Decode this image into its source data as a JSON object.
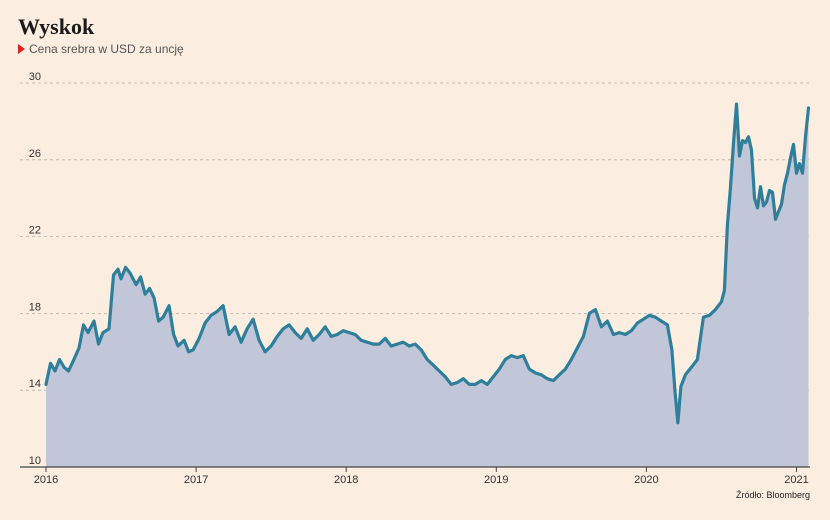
{
  "title": "Wyskok",
  "subtitle": "Cena srebra w USD za uncję",
  "source": "Źródło: Bloomberg",
  "colors": {
    "background": "#fbeee1",
    "line": "#2f7f9b",
    "area": "#c1c7d8",
    "marker": "#e0201c",
    "grid": "#b8b0a8"
  },
  "chart_data": {
    "type": "area",
    "title": "Wyskok",
    "subtitle": "Cena srebra w USD za uncję",
    "xlabel": "",
    "ylabel": "",
    "ylim": [
      10,
      30
    ],
    "yticks": [
      10,
      14,
      18,
      22,
      26,
      30
    ],
    "xticks": [
      {
        "value": 2016,
        "label": "2016"
      },
      {
        "value": 2017,
        "label": "2017"
      },
      {
        "value": 2018,
        "label": "2018"
      },
      {
        "value": 2019,
        "label": "2019"
      },
      {
        "value": 2020,
        "label": "2020"
      },
      {
        "value": 2021,
        "label": "2021"
      }
    ],
    "xlim": [
      2016.0,
      2021.09
    ],
    "grid": true,
    "series": [
      {
        "x": [
          2016.0,
          2016.03,
          2016.06,
          2016.09,
          2016.12,
          2016.15,
          2016.18,
          2016.22,
          2016.25,
          2016.28,
          2016.32,
          2016.35,
          2016.38,
          2016.42,
          2016.45,
          2016.48,
          2016.5,
          2016.53,
          2016.56,
          2016.6,
          2016.63,
          2016.66,
          2016.69,
          2016.72,
          2016.75,
          2016.78,
          2016.82,
          2016.85,
          2016.88,
          2016.92,
          2016.95,
          2016.98,
          2017.02,
          2017.06,
          2017.1,
          2017.14,
          2017.18,
          2017.22,
          2017.26,
          2017.3,
          2017.34,
          2017.38,
          2017.42,
          2017.46,
          2017.5,
          2017.54,
          2017.58,
          2017.62,
          2017.66,
          2017.7,
          2017.74,
          2017.78,
          2017.82,
          2017.86,
          2017.9,
          2017.94,
          2017.98,
          2018.02,
          2018.06,
          2018.1,
          2018.14,
          2018.18,
          2018.22,
          2018.26,
          2018.3,
          2018.34,
          2018.38,
          2018.42,
          2018.46,
          2018.5,
          2018.54,
          2018.58,
          2018.62,
          2018.66,
          2018.7,
          2018.74,
          2018.78,
          2018.82,
          2018.86,
          2018.9,
          2018.94,
          2018.98,
          2019.02,
          2019.06,
          2019.1,
          2019.14,
          2019.18,
          2019.22,
          2019.26,
          2019.3,
          2019.34,
          2019.38,
          2019.42,
          2019.46,
          2019.5,
          2019.54,
          2019.58,
          2019.62,
          2019.66,
          2019.7,
          2019.74,
          2019.78,
          2019.82,
          2019.86,
          2019.9,
          2019.94,
          2019.98,
          2020.02,
          2020.06,
          2020.1,
          2020.14,
          2020.17,
          2020.19,
          2020.21,
          2020.23,
          2020.26,
          2020.3,
          2020.34,
          2020.38,
          2020.42,
          2020.46,
          2020.5,
          2020.52,
          2020.54,
          2020.56,
          2020.58,
          2020.6,
          2020.62,
          2020.64,
          2020.66,
          2020.68,
          2020.7,
          2020.72,
          2020.74,
          2020.76,
          2020.78,
          2020.8,
          2020.82,
          2020.84,
          2020.86,
          2020.88,
          2020.9,
          2020.92,
          2020.94,
          2020.96,
          2020.98,
          2021.0,
          2021.02,
          2021.04,
          2021.06,
          2021.08
        ],
        "values": [
          14.3,
          15.4,
          15.0,
          15.6,
          15.2,
          15.0,
          15.5,
          16.2,
          17.4,
          17.0,
          17.6,
          16.4,
          17.0,
          17.2,
          20.0,
          20.3,
          19.8,
          20.4,
          20.1,
          19.5,
          19.9,
          19.0,
          19.3,
          18.8,
          17.6,
          17.8,
          18.4,
          16.9,
          16.3,
          16.6,
          16.0,
          16.1,
          16.7,
          17.5,
          17.9,
          18.1,
          18.4,
          16.9,
          17.3,
          16.5,
          17.2,
          17.7,
          16.6,
          16.0,
          16.3,
          16.8,
          17.2,
          17.4,
          17.0,
          16.7,
          17.2,
          16.6,
          16.9,
          17.3,
          16.8,
          16.9,
          17.1,
          17.0,
          16.9,
          16.6,
          16.5,
          16.4,
          16.4,
          16.7,
          16.3,
          16.4,
          16.5,
          16.3,
          16.4,
          16.1,
          15.6,
          15.3,
          15.0,
          14.7,
          14.3,
          14.4,
          14.6,
          14.3,
          14.3,
          14.5,
          14.3,
          14.7,
          15.1,
          15.6,
          15.8,
          15.7,
          15.8,
          15.1,
          14.9,
          14.8,
          14.6,
          14.5,
          14.8,
          15.1,
          15.6,
          16.2,
          16.8,
          18.0,
          18.2,
          17.3,
          17.6,
          16.9,
          17.0,
          16.9,
          17.1,
          17.5,
          17.7,
          17.9,
          17.8,
          17.6,
          17.4,
          16.1,
          14.0,
          12.3,
          14.2,
          14.8,
          15.2,
          15.6,
          17.8,
          17.9,
          18.2,
          18.6,
          19.2,
          22.6,
          24.5,
          26.8,
          28.9,
          26.2,
          27.0,
          26.9,
          27.2,
          26.5,
          24.0,
          23.5,
          24.6,
          23.6,
          23.8,
          24.4,
          24.3,
          22.9,
          23.3,
          23.7,
          24.7,
          25.3,
          26.1,
          26.8,
          25.3,
          25.8,
          25.3,
          27.2,
          28.7
        ]
      }
    ]
  }
}
